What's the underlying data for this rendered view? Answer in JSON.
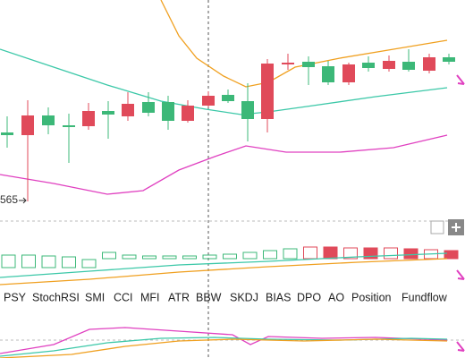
{
  "price_label": "565",
  "indicator_tabs": [
    "PSY",
    "StochRSI",
    "SMI",
    "CCI",
    "MFI",
    "ATR",
    "BBW",
    "SKDJ",
    "BIAS",
    "DPO",
    "AO",
    "Position",
    "Fundflow"
  ]
}
